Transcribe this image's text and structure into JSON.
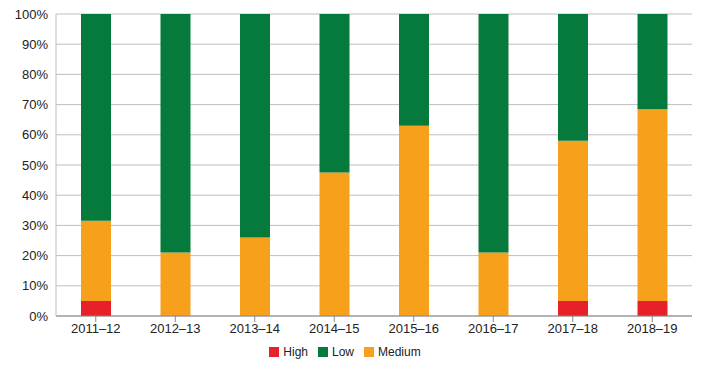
{
  "chart_data": {
    "type": "bar",
    "stacked": true,
    "grid": true,
    "legend": "bottom",
    "categories": [
      "2011–12",
      "2012–13",
      "2013–14",
      "2014–15",
      "2015–16",
      "2016–17",
      "2017–18",
      "2018–19"
    ],
    "series": [
      {
        "name": "High",
        "color": "#e8202a",
        "values": [
          5,
          0,
          0,
          0,
          0,
          0,
          5,
          5
        ]
      },
      {
        "name": "Medium",
        "color": "#f7a01c",
        "values": [
          26.5,
          21,
          26,
          47.5,
          63,
          21,
          53,
          63.5
        ]
      },
      {
        "name": "Low",
        "color": "#067a3c",
        "values": [
          68.5,
          79,
          74,
          52.5,
          37,
          79,
          42,
          31.5
        ]
      }
    ],
    "ylim": [
      0,
      100
    ],
    "yticks": [
      {
        "value": 0,
        "label": "0%"
      },
      {
        "value": 10,
        "label": "10%"
      },
      {
        "value": 20,
        "label": "20%"
      },
      {
        "value": 30,
        "label": "30%"
      },
      {
        "value": 40,
        "label": "40%"
      },
      {
        "value": 50,
        "label": "50%"
      },
      {
        "value": 60,
        "label": "60%"
      },
      {
        "value": 70,
        "label": "70%"
      },
      {
        "value": 80,
        "label": "80%"
      },
      {
        "value": 90,
        "label": "90%"
      },
      {
        "value": 100,
        "label": "100%"
      }
    ]
  }
}
